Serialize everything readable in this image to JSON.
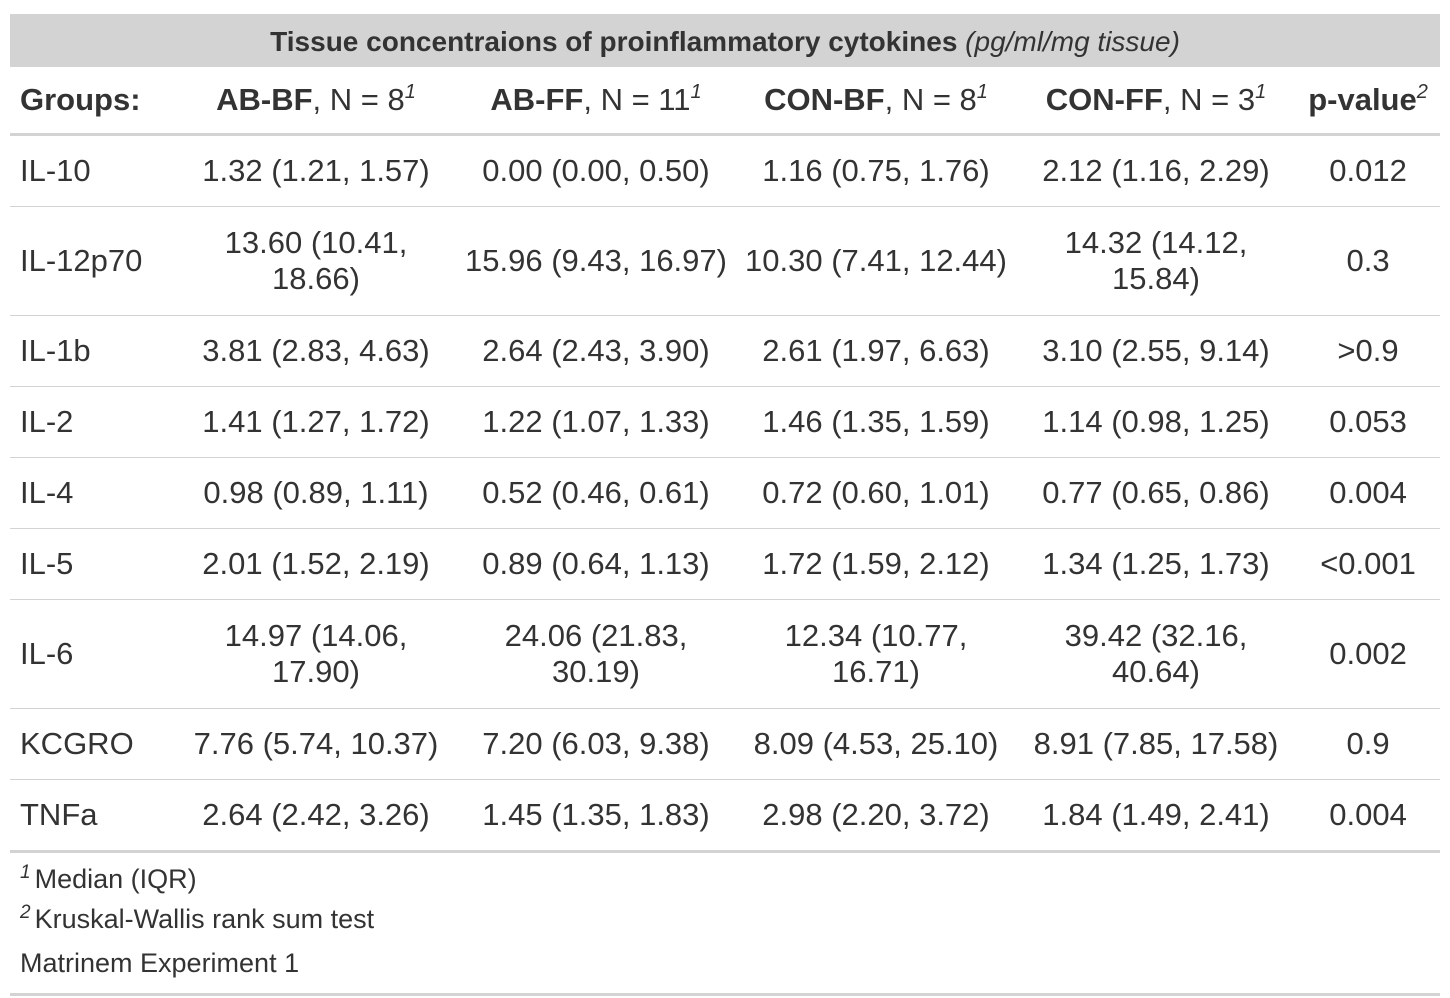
{
  "title": {
    "main": "Tissue concentraions of proinflammatory cytokines",
    "units": "(pg/ml/mg tissue)"
  },
  "header": {
    "groups_label": "Groups:",
    "columns": [
      {
        "name": "AB-BF",
        "n": ", N = 8",
        "sup": "1"
      },
      {
        "name": "AB-FF",
        "n": ", N = 11",
        "sup": "1"
      },
      {
        "name": "CON-BF",
        "n": ", N = 8",
        "sup": "1"
      },
      {
        "name": "CON-FF",
        "n": ", N = 3",
        "sup": "1"
      },
      {
        "name": "p-value",
        "n": "",
        "sup": "2"
      }
    ]
  },
  "rows": [
    {
      "label": "IL-10",
      "values": [
        "1.32 (1.21, 1.57)",
        "0.00 (0.00, 0.50)",
        "1.16 (0.75, 1.76)",
        "2.12 (1.16, 2.29)",
        "0.012"
      ]
    },
    {
      "label": "IL-12p70",
      "values": [
        "13.60 (10.41, 18.66)",
        "15.96 (9.43, 16.97)",
        "10.30 (7.41, 12.44)",
        "14.32 (14.12, 15.84)",
        "0.3"
      ]
    },
    {
      "label": "IL-1b",
      "values": [
        "3.81 (2.83, 4.63)",
        "2.64 (2.43, 3.90)",
        "2.61 (1.97, 6.63)",
        "3.10 (2.55, 9.14)",
        ">0.9"
      ]
    },
    {
      "label": "IL-2",
      "values": [
        "1.41 (1.27, 1.72)",
        "1.22 (1.07, 1.33)",
        "1.46 (1.35, 1.59)",
        "1.14 (0.98, 1.25)",
        "0.053"
      ]
    },
    {
      "label": "IL-4",
      "values": [
        "0.98 (0.89, 1.11)",
        "0.52 (0.46, 0.61)",
        "0.72 (0.60, 1.01)",
        "0.77 (0.65, 0.86)",
        "0.004"
      ]
    },
    {
      "label": "IL-5",
      "values": [
        "2.01 (1.52, 2.19)",
        "0.89 (0.64, 1.13)",
        "1.72 (1.59, 2.12)",
        "1.34 (1.25, 1.73)",
        "<0.001"
      ]
    },
    {
      "label": "IL-6",
      "values": [
        "14.97 (14.06, 17.90)",
        "24.06 (21.83, 30.19)",
        "12.34 (10.77, 16.71)",
        "39.42 (32.16, 40.64)",
        "0.002"
      ]
    },
    {
      "label": "KCGRO",
      "values": [
        "7.76 (5.74, 10.37)",
        "7.20 (6.03, 9.38)",
        "8.09 (4.53, 25.10)",
        "8.91 (7.85, 17.58)",
        "0.9"
      ]
    },
    {
      "label": "TNFa",
      "values": [
        "2.64 (2.42, 3.26)",
        "1.45 (1.35, 1.83)",
        "2.98 (2.20, 3.72)",
        "1.84 (1.49, 2.41)",
        "0.004"
      ]
    }
  ],
  "footnotes": [
    {
      "sup": "1",
      "text": "Median (IQR)"
    },
    {
      "sup": "2",
      "text": "Kruskal-Wallis rank sum test"
    }
  ],
  "source_note": "Matrinem Experiment 1"
}
